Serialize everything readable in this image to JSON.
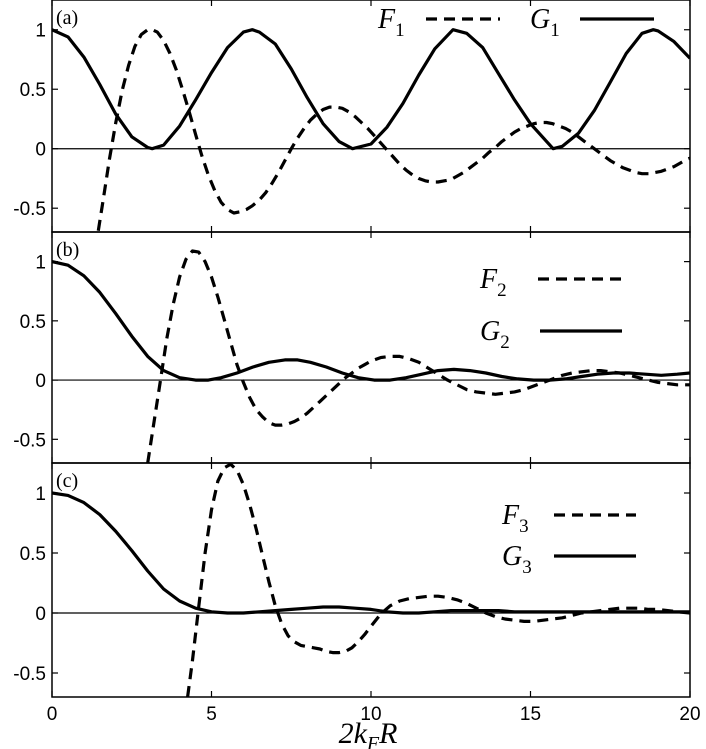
{
  "chart_data": {
    "type": "line",
    "xlabel": "2k_FR",
    "xlim": [
      0,
      20
    ],
    "x_ticks": [
      0,
      5,
      10,
      15,
      20
    ],
    "x_tick_labels": [
      "0",
      "5",
      "10",
      "15",
      "20"
    ],
    "panels": [
      {
        "label": "(a)",
        "ylim": [
          -0.7,
          1.25
        ],
        "y_ticks": [
          -0.5,
          0,
          0.5,
          1
        ],
        "y_tick_labels": [
          "-0.5",
          "0",
          "0.5",
          "1"
        ],
        "legend": [
          {
            "base": "F",
            "sub": "1",
            "style": "dashed"
          },
          {
            "base": "G",
            "sub": "1",
            "style": "solid"
          }
        ],
        "series": [
          {
            "style": "dashed",
            "x": [
              1.45,
              1.6,
              1.8,
              2.0,
              2.2,
              2.4,
              2.6,
              2.8,
              3.0,
              3.14,
              3.3,
              3.5,
              3.7,
              3.9,
              4.1,
              4.3,
              4.5,
              4.7,
              4.9,
              5.1,
              5.3,
              5.5,
              5.7,
              5.9,
              6.1,
              6.28,
              6.5,
              6.7,
              6.9,
              7.1,
              7.3,
              7.5,
              7.7,
              7.9,
              8.1,
              8.3,
              8.5,
              8.7,
              8.9,
              9.1,
              9.3,
              9.5,
              9.7,
              9.9,
              10.1,
              10.3,
              10.5,
              10.7,
              10.9,
              11.1,
              11.3,
              11.5,
              11.7,
              11.9,
              12.1,
              12.3,
              12.5,
              12.7,
              12.9,
              13.1,
              13.3,
              13.5,
              13.7,
              13.9,
              14.1,
              14.3,
              14.5,
              14.7,
              14.9,
              15.1,
              15.3,
              15.5,
              15.7,
              15.9,
              16.1,
              16.3,
              16.5,
              16.7,
              16.9,
              17.1,
              17.3,
              17.5,
              17.7,
              17.9,
              18.1,
              18.3,
              18.5,
              18.7,
              18.9,
              19.1,
              19.3,
              19.5,
              19.7,
              19.9,
              20.0
            ],
            "y": [
              -0.69,
              -0.44,
              -0.09,
              0.22,
              0.49,
              0.7,
              0.86,
              0.96,
              1.0,
              1.0,
              0.98,
              0.91,
              0.8,
              0.66,
              0.49,
              0.31,
              0.12,
              -0.06,
              -0.22,
              -0.35,
              -0.45,
              -0.51,
              -0.54,
              -0.53,
              -0.51,
              -0.48,
              -0.43,
              -0.37,
              -0.29,
              -0.2,
              -0.1,
              0.0,
              0.09,
              0.17,
              0.24,
              0.29,
              0.33,
              0.35,
              0.35,
              0.34,
              0.31,
              0.27,
              0.22,
              0.17,
              0.11,
              0.05,
              -0.01,
              -0.07,
              -0.13,
              -0.18,
              -0.22,
              -0.25,
              -0.27,
              -0.28,
              -0.28,
              -0.27,
              -0.26,
              -0.23,
              -0.2,
              -0.16,
              -0.12,
              -0.08,
              -0.03,
              0.01,
              0.06,
              0.1,
              0.14,
              0.17,
              0.19,
              0.21,
              0.22,
              0.22,
              0.21,
              0.19,
              0.17,
              0.14,
              0.1,
              0.06,
              0.02,
              -0.02,
              -0.06,
              -0.1,
              -0.13,
              -0.16,
              -0.18,
              -0.2,
              -0.21,
              -0.21,
              -0.2,
              -0.19,
              -0.17,
              -0.15,
              -0.12,
              -0.09,
              -0.08
            ]
          },
          {
            "style": "solid",
            "x": [
              0.0,
              0.5,
              1.0,
              1.5,
              2.0,
              2.5,
              3.0,
              3.14,
              3.5,
              4.0,
              4.5,
              5.0,
              5.5,
              6.0,
              6.28,
              6.5,
              7.0,
              7.5,
              8.0,
              8.5,
              9.0,
              9.42,
              10.0,
              10.5,
              11.0,
              11.5,
              12.0,
              12.57,
              13.0,
              13.5,
              14.0,
              14.5,
              15.0,
              15.71,
              16.0,
              16.5,
              17.0,
              17.5,
              18.0,
              18.5,
              18.85,
              19.0,
              19.5,
              20.0
            ],
            "y": [
              1.0,
              0.94,
              0.77,
              0.54,
              0.29,
              0.1,
              0.01,
              0.0,
              0.03,
              0.19,
              0.41,
              0.64,
              0.85,
              0.98,
              1.0,
              0.98,
              0.88,
              0.67,
              0.43,
              0.21,
              0.06,
              0.0,
              0.04,
              0.18,
              0.38,
              0.62,
              0.84,
              1.0,
              0.97,
              0.85,
              0.63,
              0.41,
              0.21,
              0.0,
              0.02,
              0.13,
              0.32,
              0.56,
              0.8,
              0.97,
              1.0,
              0.99,
              0.9,
              0.76
            ]
          }
        ]
      },
      {
        "label": "(b)",
        "ylim": [
          -0.7,
          1.25
        ],
        "y_ticks": [
          -0.5,
          0,
          0.5,
          1
        ],
        "y_tick_labels": [
          "-0.5",
          "0",
          "0.5",
          "1"
        ],
        "legend": [
          {
            "base": "F",
            "sub": "2",
            "style": "dashed"
          },
          {
            "base": "G",
            "sub": "2",
            "style": "solid"
          }
        ],
        "series": [
          {
            "style": "dashed",
            "x": [
              3.0,
              3.2,
              3.4,
              3.6,
              3.8,
              4.0,
              4.2,
              4.4,
              4.6,
              4.8,
              5.0,
              5.2,
              5.4,
              5.6,
              5.8,
              6.0,
              6.2,
              6.4,
              6.6,
              6.8,
              7.0,
              7.2,
              7.4,
              7.6,
              7.8,
              8.0,
              8.2,
              8.4,
              8.6,
              8.8,
              9.0,
              9.2,
              9.4,
              9.6,
              9.8,
              10.0,
              10.3,
              10.6,
              10.9,
              11.2,
              11.5,
              11.8,
              12.1,
              12.4,
              12.7,
              13.0,
              13.3,
              13.6,
              13.9,
              14.2,
              14.5,
              14.8,
              15.1,
              15.4,
              15.7,
              16.0,
              16.3,
              16.6,
              16.9,
              17.2,
              17.5,
              17.8,
              18.1,
              18.4,
              18.7,
              19.0,
              19.3,
              19.6,
              20.0
            ],
            "y": [
              -0.7,
              -0.35,
              0.0,
              0.35,
              0.64,
              0.87,
              1.02,
              1.09,
              1.08,
              1.0,
              0.87,
              0.7,
              0.51,
              0.32,
              0.13,
              -0.02,
              -0.15,
              -0.25,
              -0.31,
              -0.36,
              -0.38,
              -0.38,
              -0.37,
              -0.35,
              -0.32,
              -0.28,
              -0.23,
              -0.18,
              -0.13,
              -0.08,
              -0.03,
              0.02,
              0.06,
              0.1,
              0.13,
              0.16,
              0.19,
              0.2,
              0.2,
              0.18,
              0.15,
              0.1,
              0.05,
              0.0,
              -0.04,
              -0.08,
              -0.1,
              -0.11,
              -0.12,
              -0.11,
              -0.1,
              -0.08,
              -0.05,
              -0.02,
              0.01,
              0.04,
              0.06,
              0.07,
              0.08,
              0.08,
              0.07,
              0.06,
              0.04,
              0.02,
              0.0,
              -0.02,
              -0.03,
              -0.04,
              -0.04
            ]
          },
          {
            "style": "solid",
            "x": [
              0.0,
              0.5,
              1.0,
              1.5,
              2.0,
              2.5,
              3.0,
              3.5,
              4.0,
              4.5,
              4.9,
              5.3,
              5.8,
              6.3,
              6.8,
              7.3,
              7.7,
              8.1,
              8.6,
              9.1,
              9.6,
              10.1,
              10.6,
              11.1,
              11.6,
              12.1,
              12.6,
              13.1,
              13.6,
              14.1,
              14.6,
              15.1,
              15.6,
              16.1,
              16.6,
              17.1,
              17.6,
              18.1,
              18.6,
              19.1,
              19.6,
              20.0
            ],
            "y": [
              1.0,
              0.97,
              0.88,
              0.74,
              0.56,
              0.37,
              0.2,
              0.08,
              0.02,
              0.0,
              0.0,
              0.02,
              0.06,
              0.11,
              0.15,
              0.17,
              0.17,
              0.15,
              0.11,
              0.06,
              0.02,
              0.0,
              0.0,
              0.02,
              0.05,
              0.08,
              0.09,
              0.08,
              0.06,
              0.03,
              0.01,
              0.0,
              0.0,
              0.01,
              0.03,
              0.05,
              0.06,
              0.06,
              0.05,
              0.04,
              0.05,
              0.06
            ]
          }
        ]
      },
      {
        "label": "(c)",
        "ylim": [
          -0.7,
          1.25
        ],
        "y_ticks": [
          -0.5,
          0,
          0.5,
          1
        ],
        "y_tick_labels": [
          "-0.5",
          "0",
          "0.5",
          "1"
        ],
        "legend": [
          {
            "base": "F",
            "sub": "3",
            "style": "dashed"
          },
          {
            "base": "G",
            "sub": "3",
            "style": "solid"
          }
        ],
        "series": [
          {
            "style": "dashed",
            "x": [
              4.25,
              4.4,
              4.6,
              4.8,
              5.0,
              5.2,
              5.4,
              5.6,
              5.8,
              6.0,
              6.2,
              6.4,
              6.6,
              6.8,
              7.0,
              7.2,
              7.4,
              7.6,
              7.8,
              8.0,
              8.2,
              8.4,
              8.6,
              8.8,
              9.0,
              9.2,
              9.4,
              9.6,
              9.8,
              10.0,
              10.3,
              10.6,
              10.9,
              11.2,
              11.5,
              11.8,
              12.1,
              12.4,
              12.7,
              13.0,
              13.3,
              13.6,
              13.9,
              14.2,
              14.5,
              14.8,
              15.1,
              15.4,
              15.7,
              16.0,
              16.3,
              16.6,
              16.9,
              17.2,
              17.5,
              17.8,
              18.1,
              18.4,
              18.7,
              19.0,
              19.3,
              19.6,
              20.0
            ],
            "y": [
              -0.7,
              -0.4,
              0.05,
              0.5,
              0.86,
              1.1,
              1.21,
              1.24,
              1.19,
              1.07,
              0.9,
              0.7,
              0.48,
              0.26,
              0.06,
              -0.09,
              -0.19,
              -0.24,
              -0.27,
              -0.28,
              -0.29,
              -0.3,
              -0.32,
              -0.33,
              -0.33,
              -0.32,
              -0.29,
              -0.24,
              -0.18,
              -0.11,
              -0.01,
              0.06,
              0.1,
              0.12,
              0.13,
              0.14,
              0.14,
              0.13,
              0.11,
              0.08,
              0.04,
              0.0,
              -0.03,
              -0.05,
              -0.06,
              -0.07,
              -0.07,
              -0.06,
              -0.05,
              -0.04,
              -0.02,
              0.0,
              0.01,
              0.02,
              0.03,
              0.04,
              0.04,
              0.04,
              0.03,
              0.03,
              0.02,
              0.01,
              0.0
            ]
          },
          {
            "style": "solid",
            "x": [
              0.0,
              0.5,
              1.0,
              1.5,
              2.0,
              2.5,
              3.0,
              3.5,
              4.0,
              4.5,
              5.0,
              5.5,
              6.0,
              6.5,
              7.0,
              7.5,
              8.0,
              8.5,
              9.0,
              9.5,
              10.0,
              10.5,
              11.0,
              11.5,
              12.0,
              12.5,
              13.0,
              13.5,
              14.0,
              14.5,
              15.0,
              15.5,
              16.0,
              16.5,
              17.0,
              17.5,
              18.0,
              18.5,
              19.0,
              19.5,
              20.0
            ],
            "y": [
              1.0,
              0.98,
              0.92,
              0.82,
              0.68,
              0.52,
              0.35,
              0.2,
              0.1,
              0.04,
              0.01,
              0.0,
              0.0,
              0.01,
              0.02,
              0.03,
              0.04,
              0.05,
              0.05,
              0.04,
              0.03,
              0.01,
              0.0,
              0.0,
              0.01,
              0.02,
              0.02,
              0.02,
              0.02,
              0.01,
              0.01,
              0.01,
              0.01,
              0.01,
              0.01,
              0.01,
              0.01,
              0.01,
              0.01,
              0.01,
              0.01
            ]
          }
        ]
      }
    ]
  }
}
